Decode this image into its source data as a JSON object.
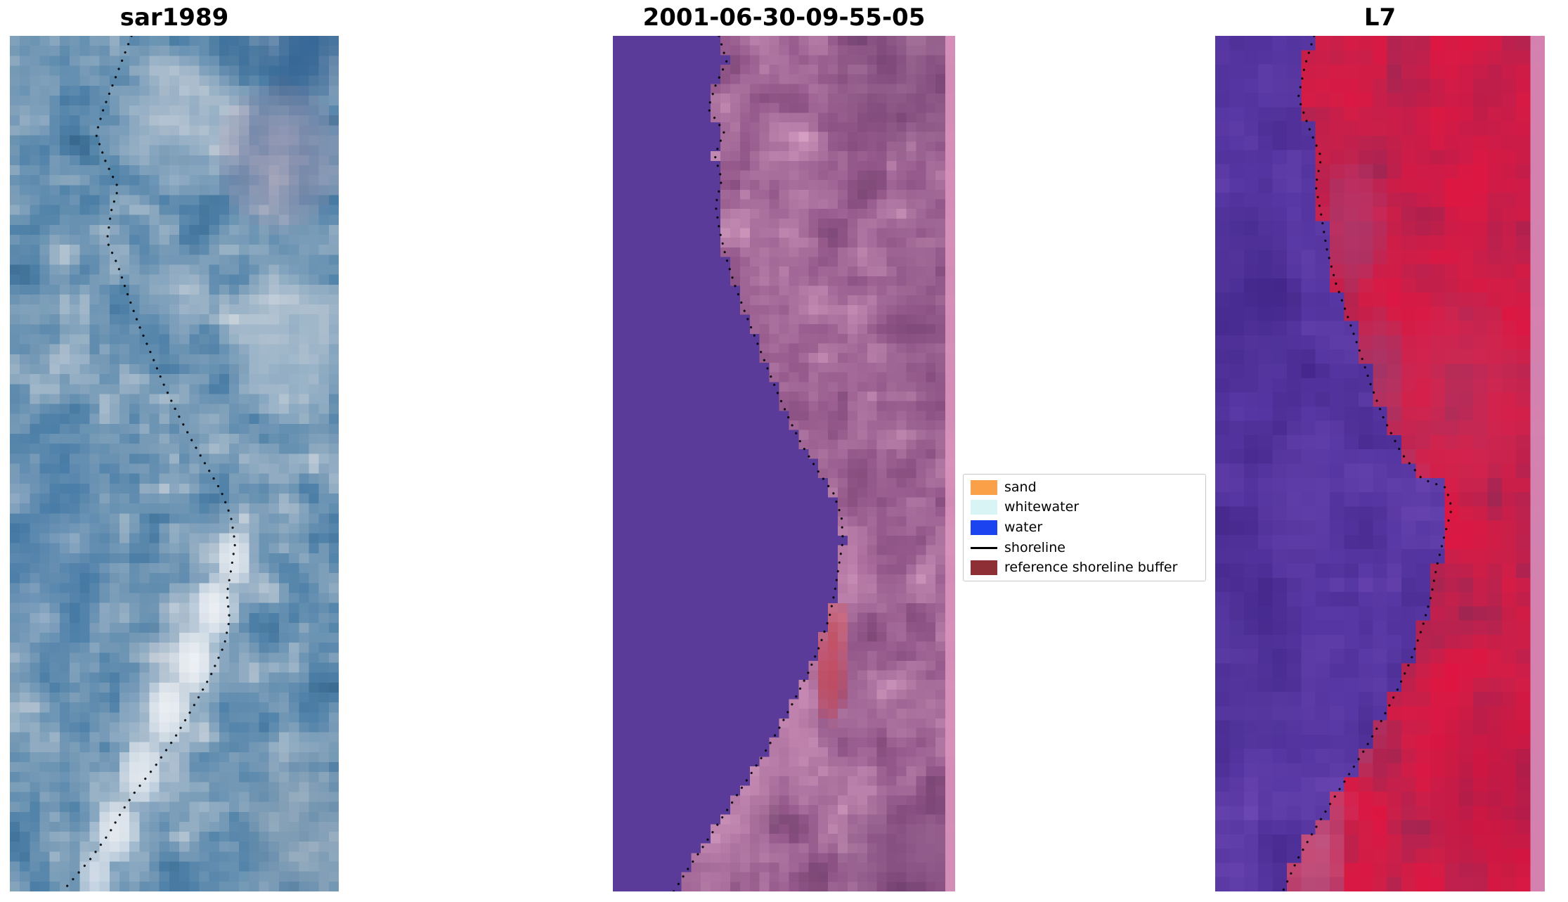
{
  "figure_background": "#ffffff",
  "chart_data": {
    "type": "heatmap",
    "panels": [
      {
        "title": "sar1989",
        "render": {
          "cols": 33,
          "rows": 86,
          "seed": 11,
          "smooth": 1,
          "base_colors": [
            "#39698f",
            "#4f81a8",
            "#7fa0ba",
            "#c5cfd9"
          ],
          "features": [
            {
              "type": "blob",
              "x": 0.9,
              "y": 0.02,
              "rx": 0.16,
              "ry": 0.06,
              "color": "#2b5c8e",
              "alpha": 0.7
            },
            {
              "type": "blob",
              "x": 0.7,
              "y": 0.01,
              "rx": 0.1,
              "ry": 0.05,
              "color": "#2f6390",
              "alpha": 0.55
            },
            {
              "type": "blob",
              "x": 0.52,
              "y": 0.1,
              "rx": 0.22,
              "ry": 0.09,
              "color": "#c8d0da",
              "alpha": 0.5
            },
            {
              "type": "blob",
              "x": 0.82,
              "y": 0.14,
              "rx": 0.2,
              "ry": 0.09,
              "color": "#b39ab2",
              "alpha": 0.5
            },
            {
              "type": "blob",
              "x": 0.84,
              "y": 0.36,
              "rx": 0.2,
              "ry": 0.1,
              "color": "#cdd5dd",
              "alpha": 0.6
            },
            {
              "type": "blob",
              "x": 0.52,
              "y": 0.3,
              "rx": 0.1,
              "ry": 0.06,
              "color": "#bfcad6",
              "alpha": 0.45
            },
            {
              "type": "blob",
              "x": 0.66,
              "y": 0.62,
              "rx": 0.12,
              "ry": 0.08,
              "color": "#c5cfda",
              "alpha": 0.5
            },
            {
              "type": "blob",
              "x": 0.55,
              "y": 0.72,
              "rx": 0.13,
              "ry": 0.09,
              "color": "#c9d2dc",
              "alpha": 0.55
            },
            {
              "type": "blob",
              "x": 0.44,
              "y": 0.82,
              "rx": 0.13,
              "ry": 0.09,
              "color": "#ccd4de",
              "alpha": 0.55
            },
            {
              "type": "blob",
              "x": 0.33,
              "y": 0.92,
              "rx": 0.12,
              "ry": 0.08,
              "color": "#c9d2dc",
              "alpha": 0.5
            },
            {
              "type": "blob",
              "x": 0.68,
              "y": 0.61,
              "rx": 0.06,
              "ry": 0.035,
              "color": "#eef1f5",
              "alpha": 0.85
            },
            {
              "type": "blob",
              "x": 0.62,
              "y": 0.67,
              "rx": 0.07,
              "ry": 0.04,
              "color": "#f2f4f7",
              "alpha": 0.9
            },
            {
              "type": "blob",
              "x": 0.56,
              "y": 0.73,
              "rx": 0.07,
              "ry": 0.04,
              "color": "#f5f6f8",
              "alpha": 0.9
            },
            {
              "type": "blob",
              "x": 0.48,
              "y": 0.79,
              "rx": 0.07,
              "ry": 0.04,
              "color": "#f2f4f7",
              "alpha": 0.9
            },
            {
              "type": "blob",
              "x": 0.4,
              "y": 0.86,
              "rx": 0.07,
              "ry": 0.04,
              "color": "#eef1f5",
              "alpha": 0.85
            },
            {
              "type": "blob",
              "x": 0.32,
              "y": 0.93,
              "rx": 0.07,
              "ry": 0.04,
              "color": "#f0f2f6",
              "alpha": 0.85
            },
            {
              "type": "blob",
              "x": 0.26,
              "y": 0.985,
              "rx": 0.06,
              "ry": 0.035,
              "color": "#eceff4",
              "alpha": 0.8
            },
            {
              "type": "blob",
              "x": 0.12,
              "y": 0.6,
              "rx": 0.2,
              "ry": 0.15,
              "color": "#3f74a6",
              "alpha": 0.35
            },
            {
              "type": "blob",
              "x": 0.88,
              "y": 0.93,
              "rx": 0.18,
              "ry": 0.1,
              "color": "#8fa3b5",
              "alpha": 0.5
            }
          ]
        },
        "shoreline": [
          [
            0.37,
            0.0
          ],
          [
            0.345,
            0.025
          ],
          [
            0.315,
            0.055
          ],
          [
            0.285,
            0.085
          ],
          [
            0.262,
            0.115
          ],
          [
            0.292,
            0.148
          ],
          [
            0.33,
            0.178
          ],
          [
            0.308,
            0.205
          ],
          [
            0.295,
            0.24
          ],
          [
            0.328,
            0.268
          ],
          [
            0.356,
            0.3
          ],
          [
            0.392,
            0.338
          ],
          [
            0.43,
            0.372
          ],
          [
            0.465,
            0.405
          ],
          [
            0.505,
            0.438
          ],
          [
            0.552,
            0.472
          ],
          [
            0.598,
            0.503
          ],
          [
            0.642,
            0.532
          ],
          [
            0.672,
            0.562
          ],
          [
            0.685,
            0.593
          ],
          [
            0.673,
            0.623
          ],
          [
            0.66,
            0.652
          ],
          [
            0.668,
            0.682
          ],
          [
            0.652,
            0.712
          ],
          [
            0.61,
            0.748
          ],
          [
            0.558,
            0.784
          ],
          [
            0.502,
            0.82
          ],
          [
            0.443,
            0.853
          ],
          [
            0.38,
            0.884
          ],
          [
            0.338,
            0.908
          ],
          [
            0.302,
            0.932
          ],
          [
            0.245,
            0.962
          ],
          [
            0.16,
            1.0
          ]
        ]
      },
      {
        "title": "2001-06-30-09-55-05",
        "render": {
          "cols": 35,
          "rows": 89,
          "seed": 23,
          "smooth": 1,
          "base_colors": [
            "#74426f",
            "#94588a",
            "#b077a3",
            "#d49fc2"
          ],
          "features": [
            {
              "type": "blob",
              "x": 0.86,
              "y": 0.05,
              "rx": 0.26,
              "ry": 0.1,
              "color": "#6b3e6b",
              "alpha": 0.45
            },
            {
              "type": "blob",
              "x": 0.93,
              "y": 0.33,
              "rx": 0.18,
              "ry": 0.18,
              "color": "#7a4878",
              "alpha": 0.35
            },
            {
              "type": "blob",
              "x": 0.86,
              "y": 0.97,
              "rx": 0.25,
              "ry": 0.09,
              "color": "#6f4070",
              "alpha": 0.45
            },
            {
              "type": "blob",
              "x": 0.68,
              "y": 0.62,
              "rx": 0.1,
              "ry": 0.06,
              "color": "#cf8fba",
              "alpha": 0.5
            },
            {
              "type": "blob",
              "x": 0.6,
              "y": 0.72,
              "rx": 0.1,
              "ry": 0.07,
              "color": "#d795be",
              "alpha": 0.55
            },
            {
              "type": "blob",
              "x": 0.5,
              "y": 0.8,
              "rx": 0.11,
              "ry": 0.07,
              "color": "#d99bc2",
              "alpha": 0.55
            },
            {
              "type": "blob",
              "x": 0.4,
              "y": 0.88,
              "rx": 0.1,
              "ry": 0.07,
              "color": "#d49ac0",
              "alpha": 0.5
            },
            {
              "type": "blob",
              "x": 0.3,
              "y": 0.95,
              "rx": 0.1,
              "ry": 0.06,
              "color": "#cf94bc",
              "alpha": 0.45
            },
            {
              "type": "blob",
              "x": 0.655,
              "y": 0.69,
              "rx": 0.035,
              "ry": 0.035,
              "color": "#c85563",
              "alpha": 0.75
            },
            {
              "type": "blob",
              "x": 0.635,
              "y": 0.745,
              "rx": 0.05,
              "ry": 0.06,
              "color": "#c24a5e",
              "alpha": 0.9
            },
            {
              "type": "leftfill",
              "colors": [
                "#5a3b9a"
              ],
              "alpha": 1
            },
            {
              "type": "strip",
              "from": 0.958,
              "color": "#d992bc",
              "alpha": 0.92
            }
          ]
        },
        "shoreline": [
          [
            0.31,
            0.0
          ],
          [
            0.332,
            0.03
          ],
          [
            0.3,
            0.058
          ],
          [
            0.278,
            0.085
          ],
          [
            0.325,
            0.112
          ],
          [
            0.298,
            0.14
          ],
          [
            0.318,
            0.168
          ],
          [
            0.3,
            0.198
          ],
          [
            0.312,
            0.228
          ],
          [
            0.33,
            0.258
          ],
          [
            0.355,
            0.29
          ],
          [
            0.385,
            0.322
          ],
          [
            0.415,
            0.352
          ],
          [
            0.448,
            0.385
          ],
          [
            0.482,
            0.418
          ],
          [
            0.515,
            0.448
          ],
          [
            0.552,
            0.478
          ],
          [
            0.598,
            0.508
          ],
          [
            0.645,
            0.535
          ],
          [
            0.668,
            0.562
          ],
          [
            0.672,
            0.59
          ],
          [
            0.66,
            0.62
          ],
          [
            0.648,
            0.65
          ],
          [
            0.632,
            0.68
          ],
          [
            0.605,
            0.712
          ],
          [
            0.57,
            0.745
          ],
          [
            0.528,
            0.778
          ],
          [
            0.482,
            0.812
          ],
          [
            0.432,
            0.845
          ],
          [
            0.378,
            0.878
          ],
          [
            0.322,
            0.912
          ],
          [
            0.268,
            0.945
          ],
          [
            0.222,
            0.972
          ],
          [
            0.178,
            1.0
          ]
        ]
      },
      {
        "title": "L7",
        "render": {
          "cols": 23,
          "rows": 60,
          "seed": 5,
          "smooth": 1,
          "base_colors": [
            "#8f2752",
            "#b42350",
            "#d21d46",
            "#e01440"
          ],
          "features": [
            {
              "type": "blob",
              "x": 0.78,
              "y": 0.13,
              "rx": 0.28,
              "ry": 0.14,
              "color": "#e21440",
              "alpha": 0.5
            },
            {
              "type": "blob",
              "x": 0.75,
              "y": 0.42,
              "rx": 0.22,
              "ry": 0.12,
              "color": "#c23a66",
              "alpha": 0.35
            },
            {
              "type": "blob",
              "x": 0.42,
              "y": 0.22,
              "rx": 0.1,
              "ry": 0.08,
              "color": "#a04b86",
              "alpha": 0.45
            },
            {
              "type": "blob",
              "x": 0.5,
              "y": 0.4,
              "rx": 0.09,
              "ry": 0.08,
              "color": "#99497f",
              "alpha": 0.45
            },
            {
              "type": "blob",
              "x": 0.58,
              "y": 0.55,
              "rx": 0.08,
              "ry": 0.07,
              "color": "#a2538c",
              "alpha": 0.45
            },
            {
              "type": "blob",
              "x": 0.52,
              "y": 0.68,
              "rx": 0.09,
              "ry": 0.07,
              "color": "#a85a90",
              "alpha": 0.45
            },
            {
              "type": "blob",
              "x": 0.42,
              "y": 0.8,
              "rx": 0.09,
              "ry": 0.07,
              "color": "#ad5f94",
              "alpha": 0.45
            },
            {
              "type": "blob",
              "x": 0.33,
              "y": 0.9,
              "rx": 0.09,
              "ry": 0.06,
              "color": "#b3689a",
              "alpha": 0.45
            },
            {
              "type": "blob",
              "x": 0.3,
              "y": 0.97,
              "rx": 0.1,
              "ry": 0.05,
              "color": "#c886b2",
              "alpha": 0.45
            },
            {
              "type": "blob",
              "x": 0.86,
              "y": 0.88,
              "rx": 0.22,
              "ry": 0.12,
              "color": "#c11340",
              "alpha": 0.5
            },
            {
              "type": "leftfill",
              "colors": [
                "#46288c",
                "#5636a2",
                "#6a46b2"
              ],
              "alpha": 1
            },
            {
              "type": "blob",
              "x": 0.1,
              "y": 0.3,
              "rx": 0.15,
              "ry": 0.12,
              "color": "#3f2585",
              "alpha": 0.45,
              "clip": "left"
            },
            {
              "type": "blob",
              "x": 0.25,
              "y": 0.55,
              "rx": 0.12,
              "ry": 0.1,
              "color": "#6a46b2",
              "alpha": 0.45,
              "clip": "left"
            },
            {
              "type": "blob",
              "x": 0.12,
              "y": 0.75,
              "rx": 0.14,
              "ry": 0.1,
              "color": "#452a8c",
              "alpha": 0.45,
              "clip": "left"
            },
            {
              "type": "blob",
              "x": 0.3,
              "y": 0.08,
              "rx": 0.12,
              "ry": 0.08,
              "color": "#543399",
              "alpha": 0.4,
              "clip": "left"
            },
            {
              "type": "strip",
              "from": 0.952,
              "color": "#d58ab8",
              "alpha": 0.92
            }
          ]
        },
        "shoreline": [
          [
            0.3,
            0.0
          ],
          [
            0.272,
            0.035
          ],
          [
            0.252,
            0.072
          ],
          [
            0.285,
            0.108
          ],
          [
            0.322,
            0.142
          ],
          [
            0.305,
            0.175
          ],
          [
            0.322,
            0.21
          ],
          [
            0.338,
            0.248
          ],
          [
            0.365,
            0.288
          ],
          [
            0.402,
            0.328
          ],
          [
            0.438,
            0.368
          ],
          [
            0.472,
            0.408
          ],
          [
            0.512,
            0.448
          ],
          [
            0.565,
            0.488
          ],
          [
            0.628,
            0.518
          ],
          [
            0.7,
            0.528
          ],
          [
            0.718,
            0.552
          ],
          [
            0.695,
            0.585
          ],
          [
            0.672,
            0.62
          ],
          [
            0.655,
            0.655
          ],
          [
            0.628,
            0.692
          ],
          [
            0.595,
            0.728
          ],
          [
            0.552,
            0.765
          ],
          [
            0.505,
            0.8
          ],
          [
            0.452,
            0.835
          ],
          [
            0.398,
            0.868
          ],
          [
            0.345,
            0.9
          ],
          [
            0.295,
            0.932
          ],
          [
            0.25,
            0.962
          ],
          [
            0.205,
            1.0
          ]
        ]
      }
    ],
    "legend": {
      "items": [
        {
          "label": "sand",
          "swatch": "patch",
          "color": "#f9a048"
        },
        {
          "label": "whitewater",
          "swatch": "patch",
          "color": "#d8f4f4"
        },
        {
          "label": "water",
          "swatch": "patch",
          "color": "#1b43ef"
        },
        {
          "label": "shoreline",
          "swatch": "line",
          "color": "#000000"
        },
        {
          "label": "reference shoreline buffer",
          "swatch": "patch",
          "color": "#8e2f36"
        }
      ]
    }
  }
}
